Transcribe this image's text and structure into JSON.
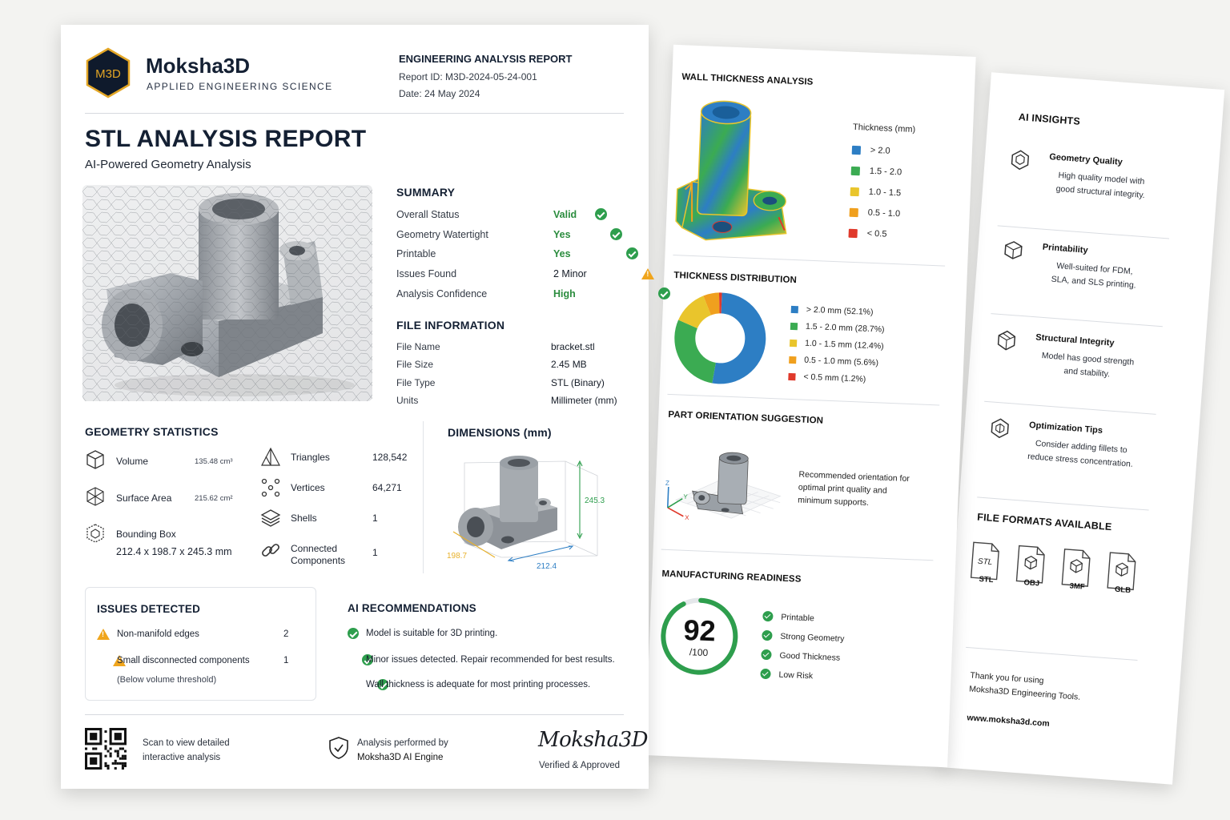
{
  "brand": {
    "logo_text": "M3D",
    "name": "Moksha3D",
    "tagline": "APPLIED ENGINEERING SCIENCE"
  },
  "report_meta": {
    "heading": "ENGINEERING ANALYSIS REPORT",
    "report_id": "Report ID: M3D-2024-05-24-001",
    "date": "Date: 24 May 2024"
  },
  "title": "STL ANALYSIS REPORT",
  "subtitle": "AI-Powered Geometry Analysis",
  "summary": {
    "heading": "SUMMARY",
    "rows": [
      {
        "label": "Overall Status",
        "value": "Valid",
        "status": "ok"
      },
      {
        "label": "Geometry Watertight",
        "value": "Yes",
        "status": "ok"
      },
      {
        "label": "Printable",
        "value": "Yes",
        "status": "ok"
      },
      {
        "label": "Issues Found",
        "value": "2 Minor",
        "status": "warn"
      },
      {
        "label": "Analysis Confidence",
        "value": "High",
        "status": "ok"
      }
    ]
  },
  "file_info": {
    "heading": "FILE INFORMATION",
    "rows": [
      {
        "label": "File Name",
        "value": "bracket.stl"
      },
      {
        "label": "File Size",
        "value": "2.45 MB"
      },
      {
        "label": "File Type",
        "value": "STL (Binary)"
      },
      {
        "label": "Units",
        "value": "Millimeter (mm)"
      }
    ]
  },
  "geometry": {
    "heading": "GEOMETRY STATISTICS",
    "volume_label": "Volume",
    "volume_value": "135.48 cm³",
    "area_label": "Surface Area",
    "area_value": "215.62 cm²",
    "bbox_label": "Bounding Box",
    "bbox_value": "212.4 x 198.7 x 245.3 mm",
    "triangles_label": "Triangles",
    "triangles_value": "128,542",
    "vertices_label": "Vertices",
    "vertices_value": "64,271",
    "shells_label": "Shells",
    "shells_value": "1",
    "connected_label_1": "Connected",
    "connected_label_2": "Components",
    "connected_value": "1"
  },
  "dimensions": {
    "heading": "DIMENSIONS (mm)",
    "height": "245.3",
    "width": "212.4",
    "depth": "198.7",
    "colors": {
      "height": "#2e9e4d",
      "width": "#2d7ec4",
      "depth": "#e8b12a"
    }
  },
  "issues": {
    "heading": "ISSUES DETECTED",
    "rows": [
      {
        "label": "Non-manifold edges",
        "count": "2"
      },
      {
        "label": "Small disconnected components",
        "count": "1",
        "note": "(Below volume threshold)"
      }
    ]
  },
  "recommendations": {
    "heading": "AI RECOMMENDATIONS",
    "items": [
      "Model is suitable for 3D printing.",
      "Minor issues detected. Repair recommended for best results.",
      "Wall thickness is adequate for most printing processes."
    ]
  },
  "footer": {
    "qr_text_1": "Scan to view detailed",
    "qr_text_2": "interactive analysis",
    "engine_text_1": "Analysis performed by",
    "engine_text_2": "Moksha3D AI Engine",
    "signature": "Moksha3D",
    "approved": "Verified & Approved"
  },
  "wall_thickness": {
    "heading": "WALL THICKNESS ANALYSIS",
    "legend_title": "Thickness (mm)",
    "legend": [
      {
        "label": "> 2.0",
        "color": "#2d7ec4"
      },
      {
        "label": "1.5 - 2.0",
        "color": "#3bab52"
      },
      {
        "label": "1.0 - 1.5",
        "color": "#e9c52c"
      },
      {
        "label": "0.5 - 1.0",
        "color": "#f0a01e"
      },
      {
        "label": "< 0.5",
        "color": "#e0392b"
      }
    ]
  },
  "thickness_distribution": {
    "heading": "THICKNESS DISTRIBUTION",
    "legend": [
      {
        "label": "> 2.0 mm (52.1%)",
        "color": "#2d7ec4"
      },
      {
        "label": "1.5 - 2.0 mm (28.7%)",
        "color": "#3bab52"
      },
      {
        "label": "1.0 - 1.5 mm (12.4%)",
        "color": "#e9c52c"
      },
      {
        "label": "0.5 - 1.0 mm (5.6%)",
        "color": "#f0a01e"
      },
      {
        "label": "< 0.5 mm (1.2%)",
        "color": "#e0392b"
      }
    ]
  },
  "chart_data": {
    "type": "pie",
    "categories": [
      "> 2.0 mm",
      "1.5 - 2.0 mm",
      "1.0 - 1.5 mm",
      "0.5 - 1.0 mm",
      "< 0.5 mm"
    ],
    "values": [
      52.1,
      28.7,
      12.4,
      5.6,
      1.2
    ],
    "colors": [
      "#2d7ec4",
      "#3bab52",
      "#e9c52c",
      "#f0a01e",
      "#e0392b"
    ],
    "title": "THICKNESS DISTRIBUTION",
    "legend_position": "right"
  },
  "orientation": {
    "heading": "PART ORIENTATION SUGGESTION",
    "text_1": "Recommended orientation for",
    "text_2": "optimal print quality and",
    "text_3": "minimum supports.",
    "axis_x": "X",
    "axis_y": "Y",
    "axis_z": "Z"
  },
  "manufacturing": {
    "heading": "MANUFACTURING READINESS",
    "score": "92",
    "score_max": "/100",
    "score_fraction": 0.92,
    "checks": [
      "Printable",
      "Strong Geometry",
      "Good Thickness",
      "Low Risk"
    ]
  },
  "ai_insights": {
    "heading": "AI INSIGHTS",
    "items": [
      {
        "title": "Geometry Quality",
        "line1": "High quality model with",
        "line2": "good structural integrity."
      },
      {
        "title": "Printability",
        "line1": "Well-suited for FDM,",
        "line2": "SLA, and SLS printing."
      },
      {
        "title": "Structural Integrity",
        "line1": "Model has good strength",
        "line2": "and stability."
      },
      {
        "title": "Optimization Tips",
        "line1": "Consider adding fillets to",
        "line2": "reduce stress concentration."
      }
    ]
  },
  "file_formats": {
    "heading": "FILE FORMATS AVAILABLE",
    "items": [
      "STL",
      "OBJ",
      "3MF",
      "GLB"
    ],
    "stl_badge": "STL"
  },
  "back_footer": {
    "thanks_1": "Thank you for using",
    "thanks_2": "Moksha3D Engineering Tools.",
    "website": "www.moksha3d.com"
  }
}
